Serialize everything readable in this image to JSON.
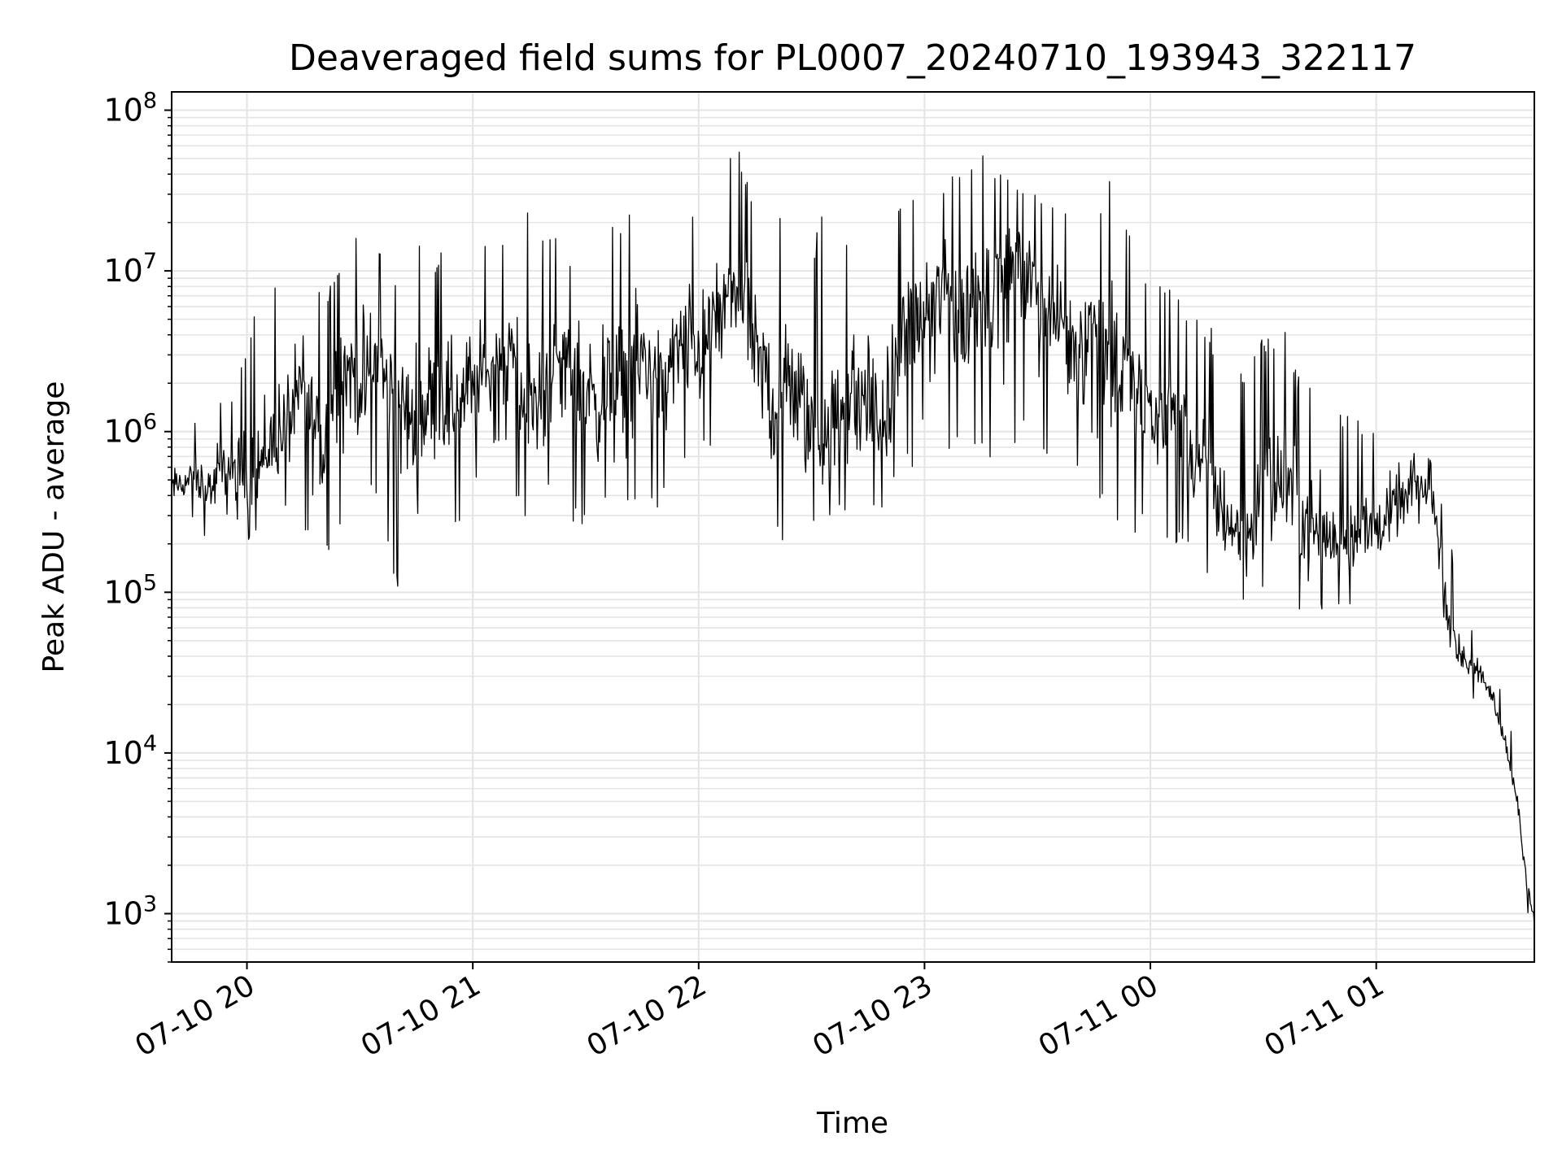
{
  "chart_data": {
    "type": "line",
    "title": "Deaveraged field sums for PL0007_20240710_193943_322117",
    "xlabel": "Time",
    "ylabel": "Peak ADU - average",
    "yscale": "log",
    "ylim": [
      500,
      130000000
    ],
    "xlim": [
      "2024-07-10 19:40",
      "2024-07-11 01:42"
    ],
    "grid": true,
    "line_color": "#000000",
    "x_ticks": [
      {
        "t": "2024-07-10 20:00",
        "label": "07-10 20"
      },
      {
        "t": "2024-07-10 21:00",
        "label": "07-10 21"
      },
      {
        "t": "2024-07-10 22:00",
        "label": "07-10 22"
      },
      {
        "t": "2024-07-10 23:00",
        "label": "07-10 23"
      },
      {
        "t": "2024-07-11 00:00",
        "label": "07-11 00"
      },
      {
        "t": "2024-07-11 01:00",
        "label": "07-11 01"
      }
    ],
    "y_ticks": [
      {
        "value": 1000,
        "base": "10",
        "exp": "3"
      },
      {
        "value": 10000,
        "base": "10",
        "exp": "4"
      },
      {
        "value": 100000,
        "base": "10",
        "exp": "5"
      },
      {
        "value": 1000000,
        "base": "10",
        "exp": "6"
      },
      {
        "value": 10000000,
        "base": "10",
        "exp": "7"
      },
      {
        "value": 100000000,
        "base": "10",
        "exp": "8"
      }
    ],
    "series": [
      {
        "x": [
          "2024-07-10 19:40",
          "2024-07-10 19:45",
          "2024-07-10 19:50",
          "2024-07-10 19:55",
          "2024-07-10 20:00",
          "2024-07-10 20:05",
          "2024-07-10 20:10",
          "2024-07-10 20:15",
          "2024-07-10 20:20",
          "2024-07-10 20:25",
          "2024-07-10 20:30",
          "2024-07-10 20:35",
          "2024-07-10 20:40",
          "2024-07-10 20:45",
          "2024-07-10 20:50",
          "2024-07-10 20:55",
          "2024-07-10 21:00",
          "2024-07-10 21:05",
          "2024-07-10 21:10",
          "2024-07-10 21:15",
          "2024-07-10 21:20",
          "2024-07-10 21:25",
          "2024-07-10 21:30",
          "2024-07-10 21:35",
          "2024-07-10 21:40",
          "2024-07-10 21:45",
          "2024-07-10 21:50",
          "2024-07-10 21:55",
          "2024-07-10 22:00",
          "2024-07-10 22:05",
          "2024-07-10 22:10",
          "2024-07-10 22:15",
          "2024-07-10 22:20",
          "2024-07-10 22:25",
          "2024-07-10 22:30",
          "2024-07-10 22:35",
          "2024-07-10 22:40",
          "2024-07-10 22:45",
          "2024-07-10 22:50",
          "2024-07-10 22:55",
          "2024-07-10 23:00",
          "2024-07-10 23:05",
          "2024-07-10 23:10",
          "2024-07-10 23:15",
          "2024-07-10 23:20",
          "2024-07-10 23:25",
          "2024-07-10 23:30",
          "2024-07-10 23:35",
          "2024-07-10 23:40",
          "2024-07-10 23:45",
          "2024-07-10 23:50",
          "2024-07-10 23:55",
          "2024-07-11 00:00",
          "2024-07-11 00:05",
          "2024-07-11 00:10",
          "2024-07-11 00:15",
          "2024-07-11 00:20",
          "2024-07-11 00:25",
          "2024-07-11 00:30",
          "2024-07-11 00:35",
          "2024-07-11 00:40",
          "2024-07-11 00:45",
          "2024-07-11 00:50",
          "2024-07-11 00:55",
          "2024-07-11 01:00",
          "2024-07-11 01:05",
          "2024-07-11 01:10",
          "2024-07-11 01:15",
          "2024-07-11 01:20",
          "2024-07-11 01:25",
          "2024-07-11 01:30",
          "2024-07-11 01:35",
          "2024-07-11 01:38",
          "2024-07-11 01:40",
          "2024-07-11 01:42"
        ],
        "y": [
          450000,
          500000,
          420000,
          600000,
          450000,
          700000,
          1000000,
          2000000,
          700000,
          3000000,
          2000000,
          3000000,
          1500000,
          1000000,
          2000000,
          1500000,
          2000000,
          2500000,
          3000000,
          1200000,
          2000000,
          3000000,
          2000000,
          1500000,
          2000000,
          3000000,
          2000000,
          3500000,
          3500000,
          5000000,
          8000000,
          3000000,
          1500000,
          2000000,
          1000000,
          800000,
          1500000,
          1500000,
          1000000,
          5000000,
          5000000,
          8000000,
          5000000,
          8000000,
          10000000,
          12000000,
          8000000,
          5000000,
          4000000,
          5000000,
          3000000,
          2000000,
          1500000,
          1200000,
          800000,
          500000,
          300000,
          200000,
          400000,
          500000,
          300000,
          250000,
          200000,
          250000,
          250000,
          300000,
          450000,
          400000,
          50000,
          35000,
          25000,
          10000,
          4000,
          1500,
          900
        ],
        "y_min": [
          250000,
          300000,
          200000,
          300000,
          200000,
          300000,
          300000,
          200000,
          150000,
          200000,
          400000,
          300000,
          100000,
          300000,
          300000,
          200000,
          500000,
          300000,
          300000,
          300000,
          400000,
          300000,
          200000,
          300000,
          200000,
          500000,
          300000,
          600000,
          600000,
          800000,
          1000000,
          700000,
          200000,
          150000,
          200000,
          300000,
          300000,
          300000,
          300000,
          600000,
          500000,
          600000,
          600000,
          700000,
          600000,
          800000,
          800000,
          600000,
          500000,
          300000,
          300000,
          200000,
          300000,
          200000,
          150000,
          100000,
          80000,
          80000,
          80000,
          100000,
          60000,
          80000,
          70000,
          80000,
          100000,
          150000,
          250000,
          300000,
          25000,
          22000,
          20000,
          8000,
          3000,
          1000,
          700
        ],
        "y_max": [
          900000,
          1000000,
          2000000,
          1500000,
          4000000,
          10000000,
          8000000,
          13000000,
          8000000,
          10000000,
          25000000,
          15000000,
          10000000,
          20000000,
          12000000,
          25000000,
          13000000,
          15000000,
          20000000,
          30000000,
          20000000,
          12000000,
          20000000,
          25000000,
          20000000,
          30000000,
          15000000,
          25000000,
          30000000,
          40000000,
          70000000,
          25000000,
          30000000,
          20000000,
          15000000,
          30000000,
          20000000,
          25000000,
          20000000,
          30000000,
          40000000,
          35000000,
          45000000,
          70000000,
          40000000,
          35000000,
          30000000,
          25000000,
          30000000,
          20000000,
          45000000,
          15000000,
          8000000,
          10000000,
          5000000,
          5000000,
          3000000,
          3000000,
          4000000,
          5000000,
          2000000,
          2000000,
          1500000,
          1200000,
          1000000,
          1500000,
          1500000,
          600000,
          200000,
          60000,
          40000,
          20000,
          6000,
          2000,
          1200
        ]
      }
    ]
  }
}
